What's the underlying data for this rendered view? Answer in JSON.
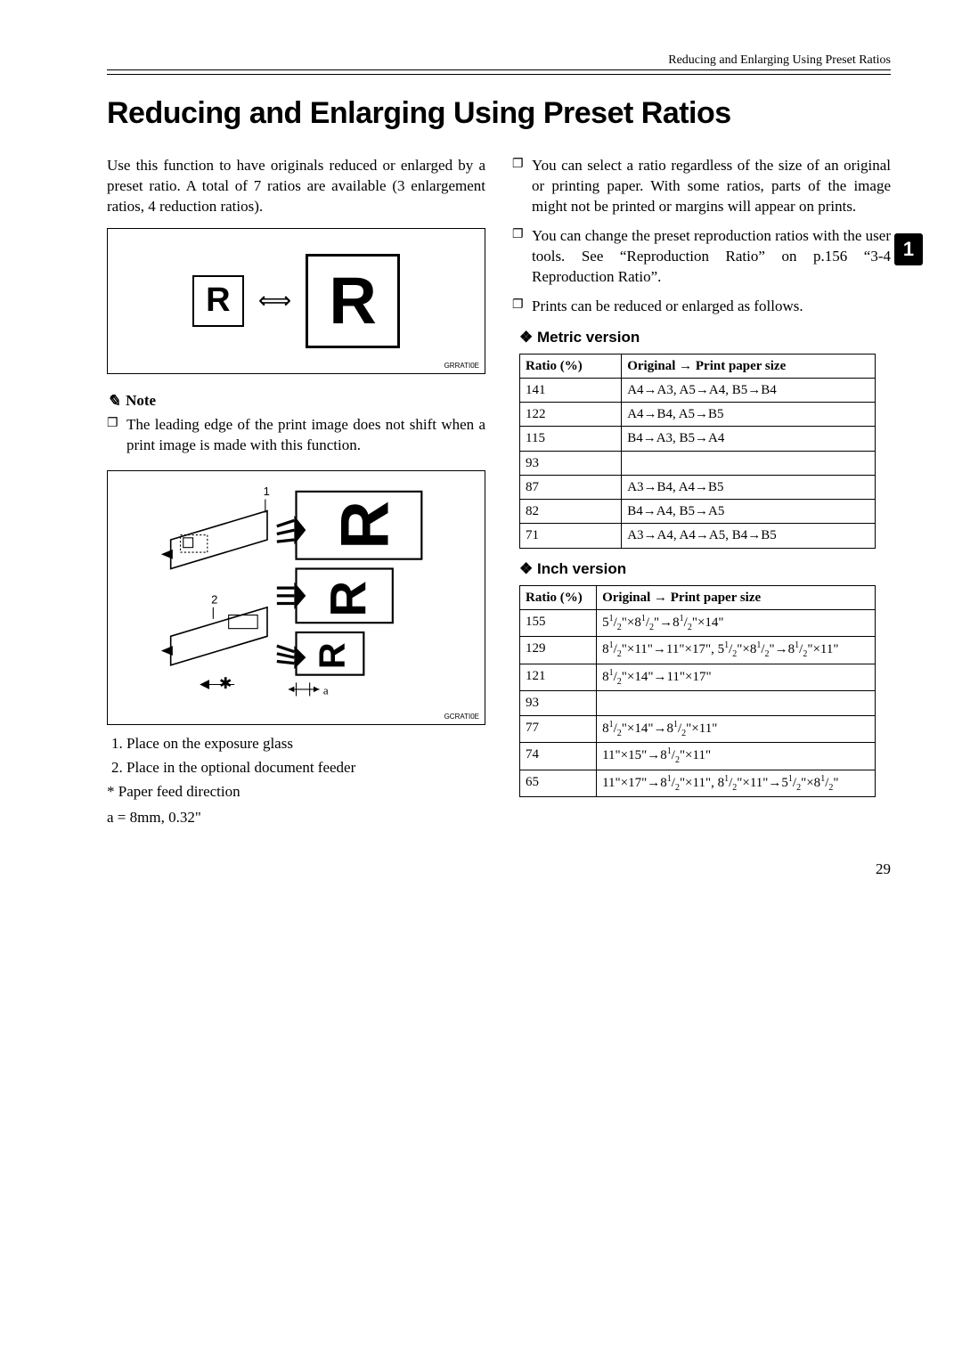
{
  "header": {
    "running_title": "Reducing and Enlarging Using Preset Ratios"
  },
  "title": "Reducing and Enlarging Using Preset Ratios",
  "side_tab": "1",
  "page_number": "29",
  "left": {
    "intro": "Use this function to have originals reduced or enlarged by a preset ratio. A total of 7 ratios are available (3 enlargement ratios, 4 reduction ratios).",
    "fig1_label": "GRRATI0E",
    "note_heading": "Note",
    "note_item": "The leading edge of the print image does not shift when a print image is made with this function.",
    "fig2_label": "GCRATI0E",
    "list_items": {
      "i1": "Place on the exposure glass",
      "i2": "Place in the optional document feeder"
    },
    "star_line": "* Paper feed direction",
    "a_line": "a = 8mm, 0.32\""
  },
  "right": {
    "bullets": {
      "b1": "You can select a ratio regardless of the size of an original or printing paper. With some ratios, parts of the image might not be printed or margins will appear on prints.",
      "b2": "You can change the preset reproduction ratios with the user tools. See “Reproduction Ratio” on p.156 “3-4 Reproduction Ratio”.",
      "b3": "Prints can be reduced or enlarged as follows."
    },
    "metric": {
      "heading": "Metric version",
      "head_ratio": "Ratio (%)",
      "head_orig": "Original → Print paper size",
      "rows": [
        {
          "r": "141",
          "s": "A4→A3, A5→A4, B5→B4"
        },
        {
          "r": "122",
          "s": "A4→B4, A5→B5"
        },
        {
          "r": "115",
          "s": "B4→A3, B5→A4"
        },
        {
          "r": "93",
          "s": ""
        },
        {
          "r": "87",
          "s": "A3→B4, A4→B5"
        },
        {
          "r": "82",
          "s": "B4→A4, B5→A5"
        },
        {
          "r": "71",
          "s": "A3→A4, A4→A5, B4→B5"
        }
      ]
    },
    "inch": {
      "heading": "Inch version",
      "head_ratio": "Ratio (%)",
      "head_orig": "Original → Print paper size",
      "rows": [
        {
          "r": "155",
          "s": "5 1/2\"×8 1/2\"→8 1/2\"×14\""
        },
        {
          "r": "129",
          "s": "8 1/2\"×11\"→11\"×17\", 5 1/2\"×8 1/2\"→8 1/2\"×11\""
        },
        {
          "r": "121",
          "s": "8 1/2\"×14\"→11\"×17\""
        },
        {
          "r": "93",
          "s": ""
        },
        {
          "r": "77",
          "s": "8 1/2\"×14\"→8 1/2\"×11\""
        },
        {
          "r": "74",
          "s": "11\"×15\"→8 1/2\"×11\""
        },
        {
          "r": "65",
          "s": "11\"×17\"→8 1/2\"×11\", 8 1/2\"×11\"→5 1/2\"×8 1/2\""
        }
      ]
    }
  }
}
